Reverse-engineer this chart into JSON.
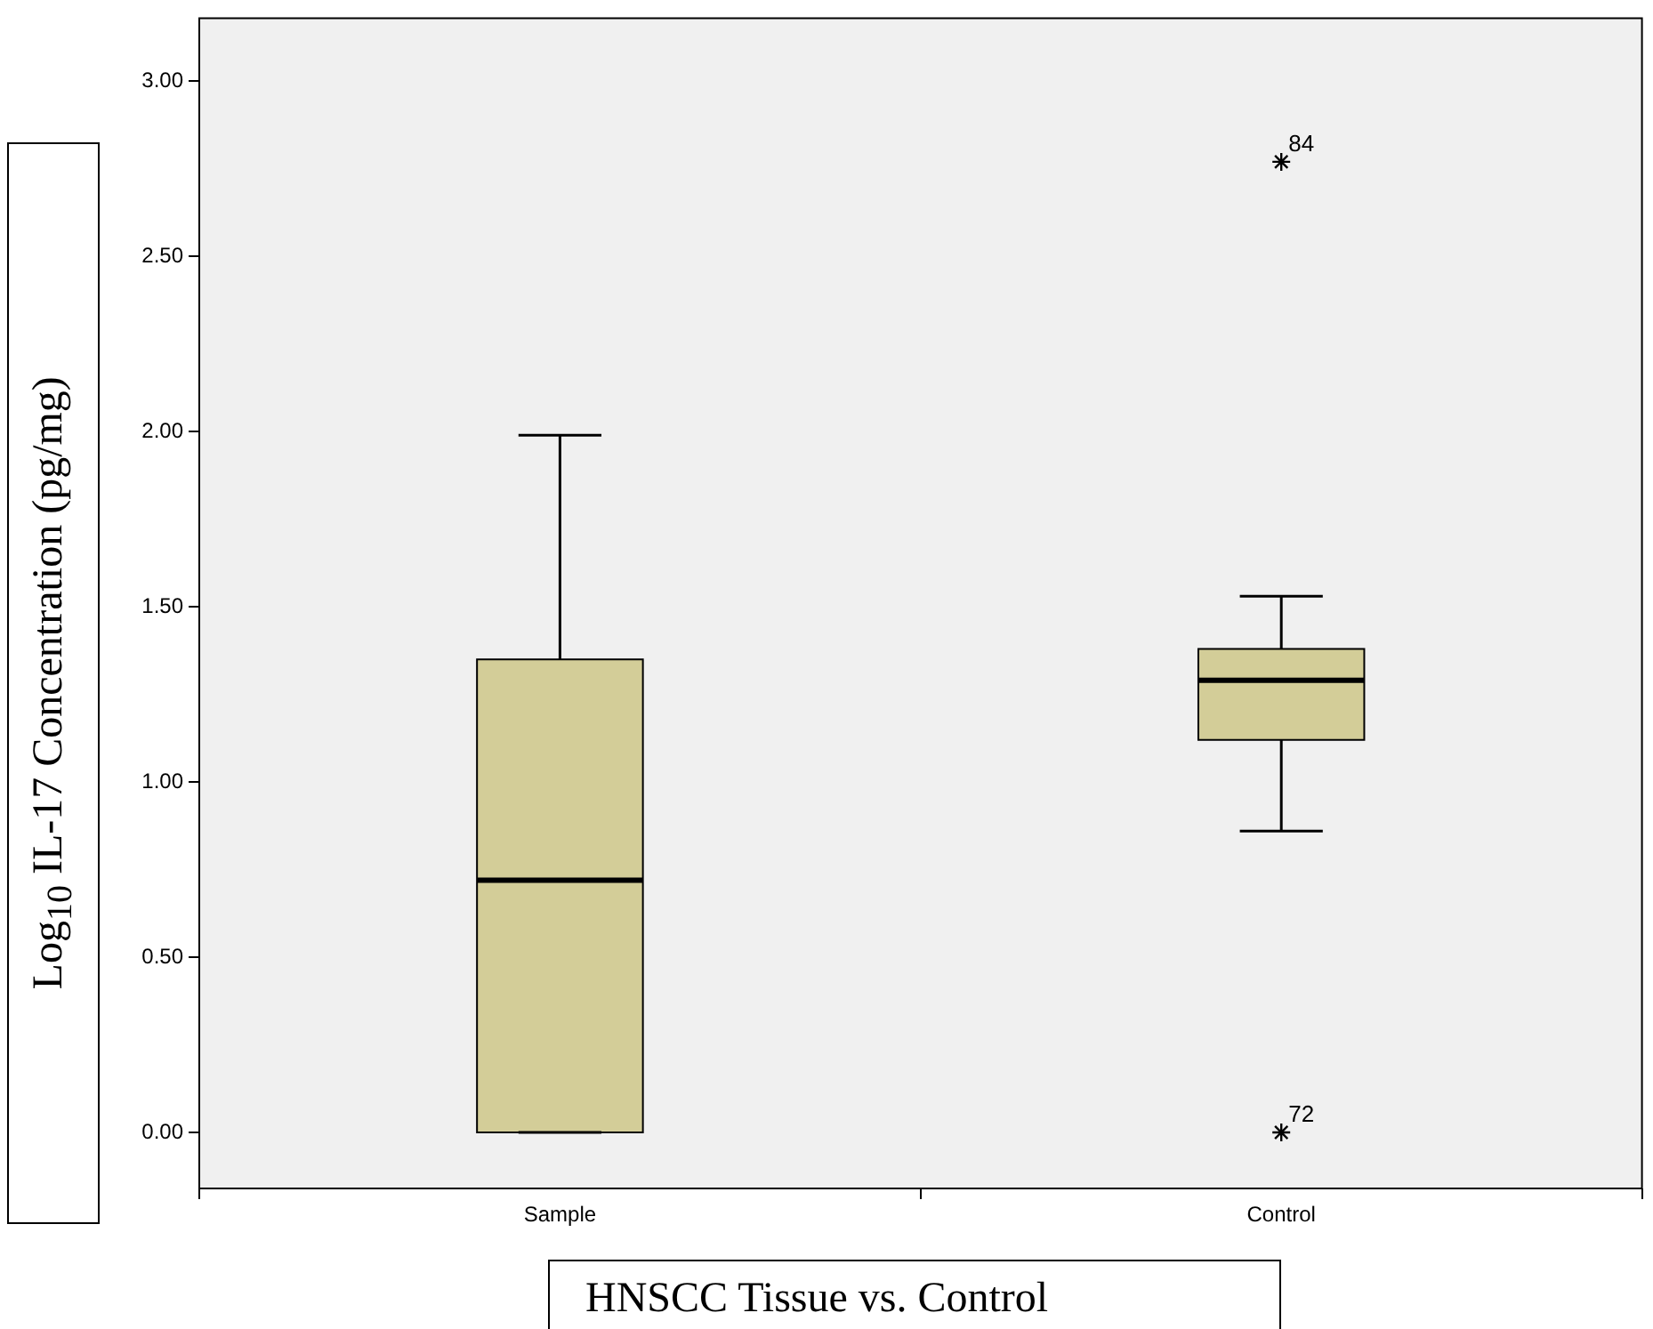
{
  "chart_data": {
    "type": "box",
    "xlabel": "HNSCC Tissue vs. Control",
    "ylabel": "Log$_{10}$ IL-17 Concentration (pg/mg)",
    "categories": [
      "Sample",
      "Control"
    ],
    "color": "#d3cd98",
    "marker": "star",
    "legend": false,
    "grid": false,
    "boxes": [
      {
        "low": 0,
        "q1": 0,
        "median": 0.72,
        "q3": 1.35,
        "high": 1.99
      },
      {
        "low": 0.86,
        "q1": 1.12,
        "median": 1.29,
        "q3": 1.38,
        "high": 1.53,
        "outliers": [
          2.77,
          0
        ]
      }
    ],
    "ylim": [
      -0.16,
      3.18
    ],
    "yticks": [
      {
        "value": 0,
        "label": "0.00"
      },
      {
        "value": 0.5,
        "label": "0.50"
      },
      {
        "value": 1,
        "label": "1.00"
      },
      {
        "value": 1.5,
        "label": "1.50"
      },
      {
        "value": 2,
        "label": "2.00"
      },
      {
        "value": 2.5,
        "label": "2.50"
      },
      {
        "value": 3,
        "label": "3.00"
      }
    ],
    "annotations": [
      "84",
      "72"
    ]
  }
}
